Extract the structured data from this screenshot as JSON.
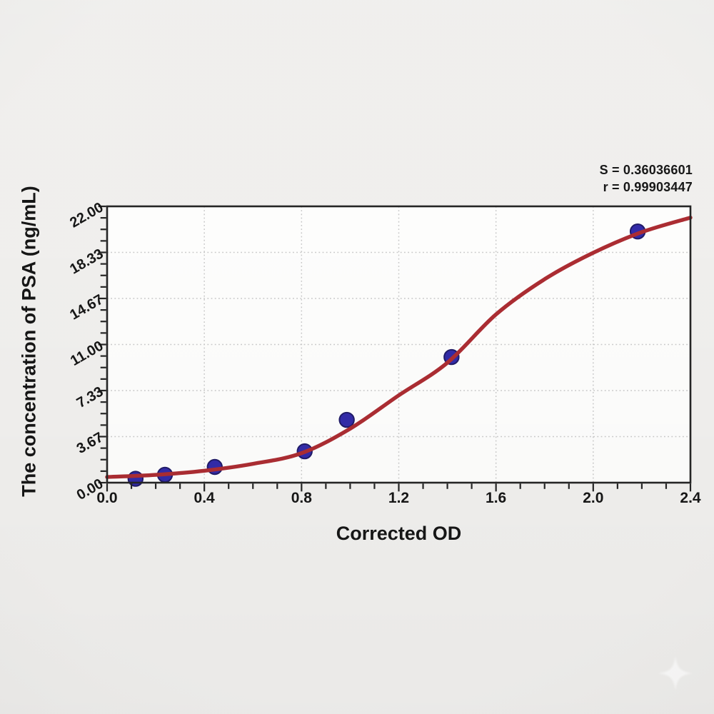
{
  "page": {
    "background_color": "#efeeec",
    "watermark_icon": "sparkle-star"
  },
  "chart_data": {
    "type": "scatter",
    "title": "",
    "xlabel": "Corrected OD",
    "ylabel": "The concentration of PSA (ng/mL)",
    "xlim": [
      0,
      2.4
    ],
    "ylim": [
      0,
      22
    ],
    "grid": "dotted-on-major-ticks",
    "legend_position": "none",
    "x_tick_labels": [
      "0.0",
      "0.4",
      "0.8",
      "1.2",
      "1.6",
      "2.0",
      "2.4"
    ],
    "x_major_values": [
      0,
      0.4,
      0.8,
      1.2,
      1.6,
      2.0,
      2.4
    ],
    "x_minor_step": 0.1,
    "y_tick_labels": [
      "0.00",
      "3.67",
      "7.33",
      "11.00",
      "14.67",
      "18.33",
      "22.00"
    ],
    "y_major_values": [
      0,
      3.6667,
      7.3333,
      11,
      14.6667,
      18.3333,
      22
    ],
    "y_minor_divisions_per_major": 4,
    "annotations": {
      "s_value": "S = 0.36036601",
      "r_value": "r = 0.99903447"
    },
    "series": [
      {
        "name": "standard-points",
        "type": "scatter",
        "marker": "circle",
        "points": [
          {
            "x": 0.117,
            "y": 0.31
          },
          {
            "x": 0.238,
            "y": 0.63
          },
          {
            "x": 0.443,
            "y": 1.25
          },
          {
            "x": 0.813,
            "y": 2.5
          },
          {
            "x": 0.986,
            "y": 5.0
          },
          {
            "x": 1.417,
            "y": 10.0
          },
          {
            "x": 2.183,
            "y": 20.0
          }
        ]
      },
      {
        "name": "4pl-fit-curve",
        "type": "line",
        "points": [
          {
            "x": 0.0,
            "y": 0.45
          },
          {
            "x": 0.2,
            "y": 0.62
          },
          {
            "x": 0.4,
            "y": 0.95
          },
          {
            "x": 0.6,
            "y": 1.5
          },
          {
            "x": 0.8,
            "y": 2.35
          },
          {
            "x": 1.0,
            "y": 4.3
          },
          {
            "x": 1.2,
            "y": 6.95
          },
          {
            "x": 1.4,
            "y": 9.55
          },
          {
            "x": 1.6,
            "y": 13.4
          },
          {
            "x": 1.8,
            "y": 16.2
          },
          {
            "x": 2.0,
            "y": 18.3
          },
          {
            "x": 2.2,
            "y": 19.95
          },
          {
            "x": 2.4,
            "y": 21.1
          }
        ]
      }
    ],
    "colors": {
      "curve": "#a8242a",
      "point_fill": "#2a22a4",
      "point_stroke": "#171262",
      "axis": "#1c1c1c",
      "grid": "#c6c6c6",
      "plot_background": "#fdfdfc",
      "text": "#0d0d0d"
    }
  }
}
